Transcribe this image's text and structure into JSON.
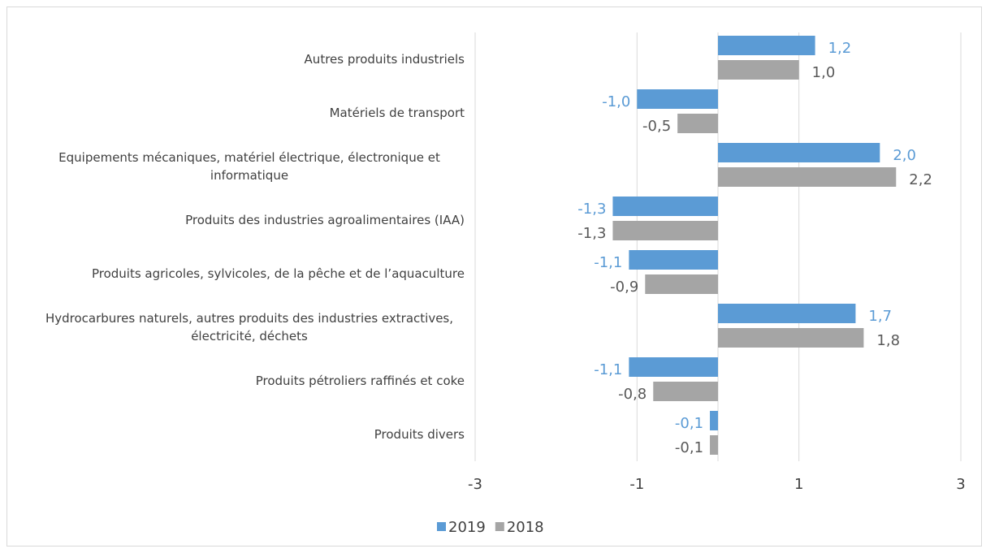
{
  "chart_data": {
    "type": "bar",
    "orientation": "horizontal",
    "categories": [
      "Autres produits industriels",
      "Matériels de transport",
      "Equipements mécaniques, matériel électrique, électronique et informatique",
      "Produits des industries agroalimentaires (IAA)",
      "Produits agricoles, sylvicoles, de la pêche et de l’aquaculture",
      "Hydrocarbures naturels, autres produits des industries extractives, électricité, déchets",
      "Produits pétroliers raffinés et coke",
      "Produits divers"
    ],
    "series": [
      {
        "name": "2019",
        "color": "#5b9bd5",
        "label_color": "#5b9bd5",
        "values": [
          1.2,
          -1.0,
          2.0,
          -1.3,
          -1.1,
          1.7,
          -1.1,
          -0.1
        ],
        "value_labels": [
          "1,2",
          "-1,0",
          "2,0",
          "-1,3",
          "-1,1",
          "1,7",
          "-1,1",
          "-0,1"
        ]
      },
      {
        "name": "2018",
        "color": "#a5a5a5",
        "label_color": "#595959",
        "values": [
          1.0,
          -0.5,
          2.2,
          -1.3,
          -0.9,
          1.8,
          -0.8,
          -0.1
        ],
        "value_labels": [
          "1,0",
          "-0,5",
          "2,2",
          "-1,3",
          "-0,9",
          "1,8",
          "-0,8",
          "-0,1"
        ]
      }
    ],
    "xlim": [
      -3,
      3
    ],
    "xticks": [
      -3,
      -1,
      1,
      3
    ],
    "grid": true,
    "legend": "bottom"
  }
}
